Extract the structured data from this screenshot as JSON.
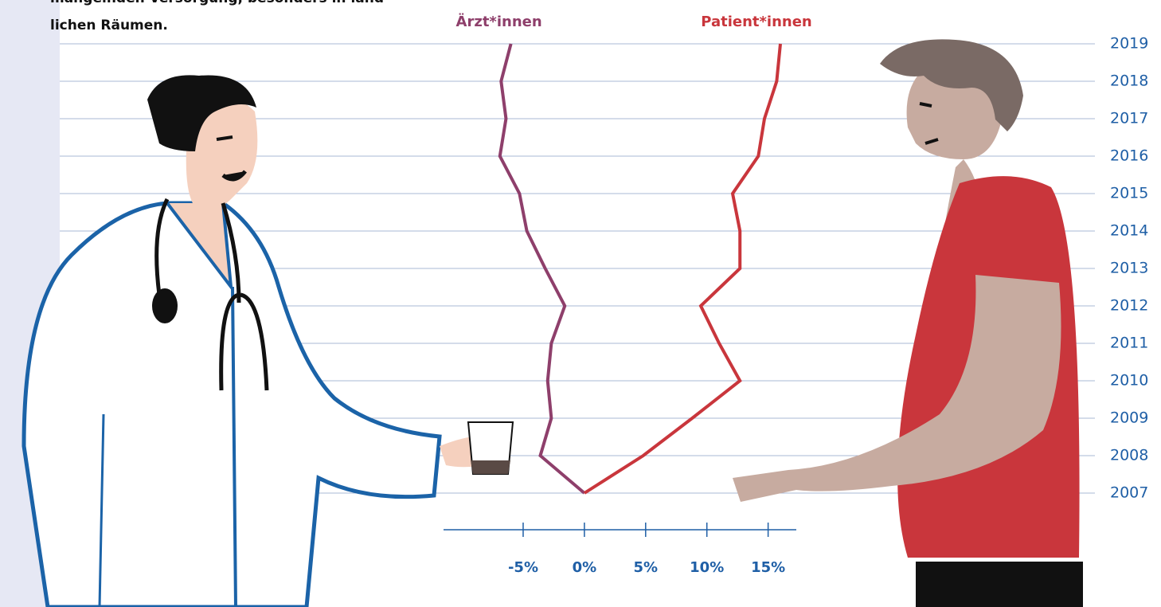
{
  "intro_text": [
    "mangelnden Versorgung, besonders in länd-",
    "lichen Räumen."
  ],
  "chart_data": {
    "type": "line",
    "categories": [
      "2007",
      "2008",
      "2009",
      "2010",
      "2011",
      "2012",
      "2013",
      "2014",
      "2015",
      "2016",
      "2017",
      "2018",
      "2019"
    ],
    "series": [
      {
        "name": "Ärzt*innen",
        "color": "#8e3f6b",
        "values": [
          0,
          -3.6,
          -2.7,
          -3.0,
          -2.7,
          -1.6,
          -3.2,
          -4.7,
          -5.3,
          -6.9,
          -6.4,
          -6.8,
          -6.0
        ]
      },
      {
        "name": "Patient*innen",
        "color": "#c9363c",
        "values": [
          0,
          4.8,
          8.8,
          12.7,
          11.0,
          9.5,
          12.7,
          12.7,
          12.1,
          14.2,
          14.7,
          15.7,
          16.0
        ]
      }
    ],
    "xlim": [
      -11.5,
      17.3
    ],
    "xticks": [
      {
        "value": -5,
        "label": "-5%"
      },
      {
        "value": 0,
        "label": "0%"
      },
      {
        "value": 5,
        "label": "5%"
      },
      {
        "value": 10,
        "label": "10%"
      },
      {
        "value": 15,
        "label": "15%"
      }
    ],
    "grid": true
  }
}
